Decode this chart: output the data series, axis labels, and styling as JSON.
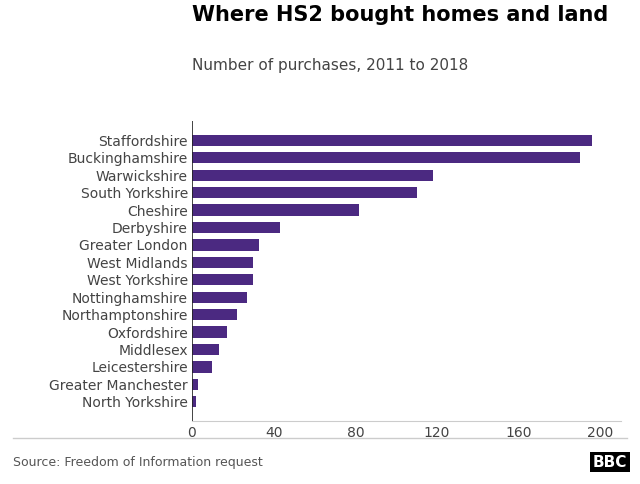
{
  "title": "Where HS2 bought homes and land",
  "subtitle": "Number of purchases, 2011 to 2018",
  "source": "Source: Freedom of Information request",
  "bar_color": "#4b2981",
  "background_color": "#ffffff",
  "categories": [
    "North Yorkshire",
    "Greater Manchester",
    "Leicestershire",
    "Middlesex",
    "Oxfordshire",
    "Northamptonshire",
    "Nottinghamshire",
    "West Yorkshire",
    "West Midlands",
    "Greater London",
    "Derbyshire",
    "Cheshire",
    "South Yorkshire",
    "Warwickshire",
    "Buckinghamshire",
    "Staffordshire"
  ],
  "values": [
    2,
    3,
    10,
    13,
    17,
    22,
    27,
    30,
    30,
    33,
    43,
    82,
    110,
    118,
    190,
    196
  ],
  "xlim": [
    0,
    210
  ],
  "xticks": [
    0,
    40,
    80,
    120,
    160,
    200
  ],
  "title_fontsize": 15,
  "subtitle_fontsize": 11,
  "label_fontsize": 10,
  "tick_fontsize": 10,
  "source_fontsize": 9,
  "bbc_fontsize": 11,
  "bar_height": 0.65
}
